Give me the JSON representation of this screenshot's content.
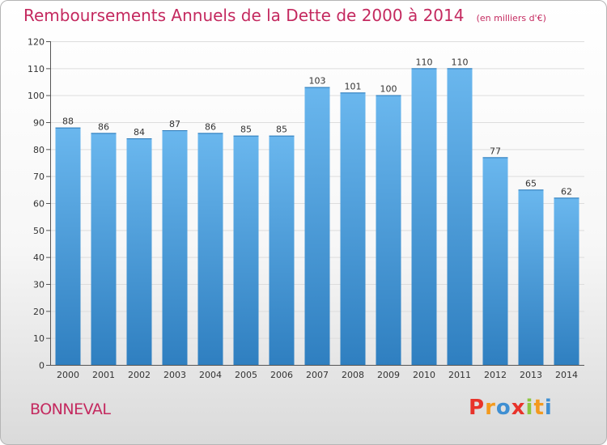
{
  "header": {
    "title": "Remboursements Annuels de la Dette de 2000 à 2014",
    "unit": "(en milliers d'€)"
  },
  "footer": {
    "commune": "BONNEVAL",
    "brand_letters": [
      "P",
      "r",
      "o",
      "x",
      "i",
      "t",
      "i"
    ],
    "brand_colors": [
      "#e8332a",
      "#f39a1e",
      "#3f8fd2",
      "#e8332a",
      "#8dc63f",
      "#f39a1e",
      "#3f8fd2"
    ]
  },
  "colors": {
    "bar": "#4a9fe0",
    "bar_light": "#6ab7ee",
    "bar_dark": "#2f7fc0",
    "accent": "#c4295f"
  },
  "chart_data": {
    "type": "bar",
    "title": "Remboursements Annuels de la Dette de 2000 à 2014",
    "xlabel": "",
    "ylabel": "",
    "categories": [
      "2000",
      "2001",
      "2002",
      "2003",
      "2004",
      "2005",
      "2006",
      "2007",
      "2008",
      "2009",
      "2010",
      "2011",
      "2012",
      "2013",
      "2014"
    ],
    "values": [
      88,
      86,
      84,
      87,
      86,
      85,
      85,
      103,
      101,
      100,
      110,
      110,
      77,
      65,
      62
    ],
    "ylim": [
      0,
      120
    ],
    "yticks": [
      0,
      10,
      20,
      30,
      40,
      50,
      60,
      70,
      80,
      90,
      100,
      110,
      120
    ],
    "grid": true
  }
}
